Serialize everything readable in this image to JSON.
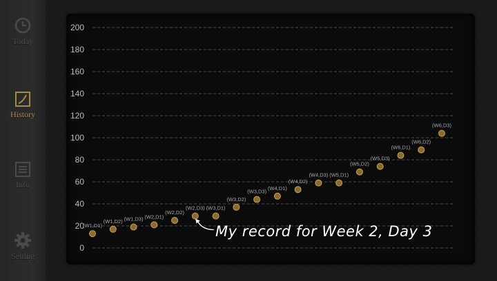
{
  "sidebar": {
    "items": [
      {
        "label": "Today",
        "icon": "clock-icon",
        "active": false
      },
      {
        "label": "History",
        "icon": "history-chart-icon",
        "active": true
      },
      {
        "label": "Info",
        "icon": "info-list-icon",
        "active": false
      },
      {
        "label": "Setting",
        "icon": "gear-icon",
        "active": false
      }
    ]
  },
  "colors": {
    "accent": "#a88a45",
    "point_fill": "#8a6a2e",
    "point_stroke": "#c9a257",
    "grid": "#4a4a4a",
    "label": "#bdbdbd"
  },
  "annotation": {
    "text": "My record for Week 2, Day 3"
  },
  "chart_data": {
    "type": "scatter",
    "ylim": [
      0,
      200
    ],
    "yticks": [
      0,
      20,
      40,
      60,
      80,
      100,
      120,
      140,
      160,
      180,
      200
    ],
    "grid": true,
    "points": [
      {
        "label": "(W1,D1)",
        "y": 13
      },
      {
        "label": "(W1,D2)",
        "y": 17
      },
      {
        "label": "(W1,D3)",
        "y": 19
      },
      {
        "label": "(W2,D1)",
        "y": 21
      },
      {
        "label": "(W2,D2)",
        "y": 25
      },
      {
        "label": "(W2,D3)",
        "y": 29
      },
      {
        "label": "(W3,D1)",
        "y": 29
      },
      {
        "label": "(W3,D2)",
        "y": 37
      },
      {
        "label": "(W3,D3)",
        "y": 44
      },
      {
        "label": "(W4,D1)",
        "y": 47
      },
      {
        "label": "(W4,D2)",
        "y": 53
      },
      {
        "label": "(W4,D3)",
        "y": 59
      },
      {
        "label": "(W5,D1)",
        "y": 59
      },
      {
        "label": "(W5,D2)",
        "y": 69
      },
      {
        "label": "(W5,D3)",
        "y": 74
      },
      {
        "label": "(W6,D1)",
        "y": 84
      },
      {
        "label": "(W6,D2)",
        "y": 89
      },
      {
        "label": "(W6,D3)",
        "y": 104
      }
    ]
  }
}
